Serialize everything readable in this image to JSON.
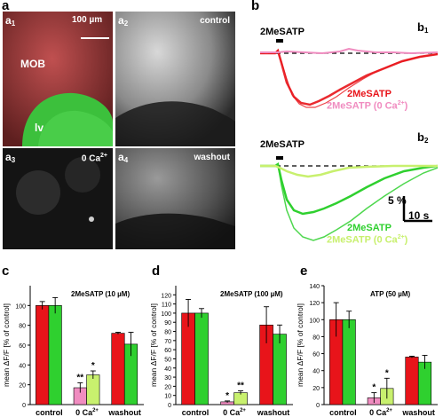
{
  "figure": {
    "panel_a_label": "a",
    "panel_b_label": "b",
    "panel_c_label": "c",
    "panel_d_label": "d",
    "panel_e_label": "e"
  },
  "panel_a": {
    "a1": {
      "label": "a",
      "sub": "1",
      "scale_bar": "100 µm",
      "region1": "MOB",
      "region2": "lv"
    },
    "a2": {
      "label": "a",
      "sub": "2",
      "condition": "control"
    },
    "a3": {
      "label": "a",
      "sub": "3",
      "condition": "0 Ca",
      "condition_sup": "2+"
    },
    "a4": {
      "label": "a",
      "sub": "4",
      "condition": "washout"
    }
  },
  "panel_b": {
    "b1": {
      "label": "b",
      "sub": "1",
      "stim": "2MeSATP",
      "legend1": "2MeSATP",
      "legend2": "2MeSATP (0 Ca",
      "legend2_sup": "2+",
      "legend2_end": ")"
    },
    "b2": {
      "label": "b",
      "sub": "2",
      "stim": "2MeSATP",
      "legend1": "2MeSATP",
      "legend2": "2MeSATP (0 Ca",
      "legend2_sup": "2+",
      "legend2_end": ")"
    },
    "scale_y": "5 %",
    "scale_x": "10 s"
  },
  "colors": {
    "red": "#e8141a",
    "green": "#2fd02f",
    "pink": "#f08cc0",
    "yellowgreen": "#c8f06e"
  },
  "chart_data": [
    {
      "panel": "c",
      "type": "bar",
      "title": "2MeSATP (10 µM)",
      "ylabel": "mean ΔF/F [% of control]",
      "ylim": [
        0,
        120
      ],
      "yticks": [
        0,
        20,
        40,
        60,
        80,
        100
      ],
      "categories": [
        "control",
        "0 Ca2+",
        "washout"
      ],
      "category_labels": {
        "c1": "control",
        "c2": "0 Ca",
        "c2_sup": "2+",
        "c3": "washout"
      },
      "bars": [
        {
          "group": 0,
          "color": "red",
          "value": 100,
          "err": 4
        },
        {
          "group": 0,
          "color": "green",
          "value": 100,
          "err": 8
        },
        {
          "group": 1,
          "color": "pink",
          "value": 17,
          "err": 5,
          "sig": "**"
        },
        {
          "group": 1,
          "color": "yellowgreen",
          "value": 30,
          "err": 4,
          "sig": "*"
        },
        {
          "group": 2,
          "color": "red",
          "value": 72,
          "err": 1
        },
        {
          "group": 2,
          "color": "green",
          "value": 61,
          "err": 12
        }
      ]
    },
    {
      "panel": "d",
      "type": "bar",
      "title": "2MeSATP (100 µM)",
      "ylabel": "mean ΔF/F [% of control]",
      "ylim": [
        0,
        130
      ],
      "yticks": [
        0,
        10,
        20,
        30,
        40,
        50,
        60,
        70,
        80,
        90,
        100,
        110,
        120
      ],
      "categories": [
        "control",
        "0 Ca2+",
        "washout"
      ],
      "category_labels": {
        "c1": "control",
        "c2": "0 Ca",
        "c2_sup": "2+",
        "c3": "washout"
      },
      "bars": [
        {
          "group": 0,
          "color": "red",
          "value": 100,
          "err": 15
        },
        {
          "group": 0,
          "color": "green",
          "value": 100,
          "err": 5
        },
        {
          "group": 1,
          "color": "pink",
          "value": 3,
          "err": 1,
          "sig": "*"
        },
        {
          "group": 1,
          "color": "yellowgreen",
          "value": 13,
          "err": 2,
          "sig": "**"
        },
        {
          "group": 2,
          "color": "red",
          "value": 87,
          "err": 20
        },
        {
          "group": 2,
          "color": "green",
          "value": 77,
          "err": 10
        }
      ]
    },
    {
      "panel": "e",
      "type": "bar",
      "title": "ATP (50 µM)",
      "ylabel": "mean ΔF/F [% of control]",
      "ylim": [
        0,
        140
      ],
      "yticks": [
        0,
        20,
        40,
        60,
        80,
        100,
        120,
        140
      ],
      "categories": [
        "control",
        "0 Ca2+",
        "washout"
      ],
      "category_labels": {
        "c1": "control",
        "c2": "0 Ca",
        "c2_sup": "2+",
        "c3": "washout"
      },
      "bars": [
        {
          "group": 0,
          "color": "red",
          "value": 100,
          "err": 20
        },
        {
          "group": 0,
          "color": "green",
          "value": 100,
          "err": 10
        },
        {
          "group": 1,
          "color": "pink",
          "value": 8,
          "err": 6,
          "sig": "*"
        },
        {
          "group": 1,
          "color": "yellowgreen",
          "value": 19,
          "err": 12,
          "sig": "*"
        },
        {
          "group": 2,
          "color": "red",
          "value": 56,
          "err": 1
        },
        {
          "group": 2,
          "color": "green",
          "value": 50,
          "err": 8
        }
      ]
    }
  ]
}
